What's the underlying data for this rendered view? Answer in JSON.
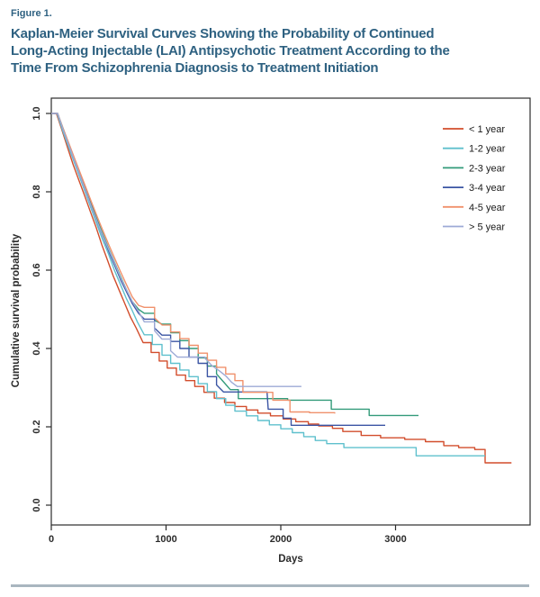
{
  "header": {
    "figure_label": "Figure 1.",
    "title": "Kaplan-Meier Survival Curves Showing the Probability of Continued Long-Acting Injectable (LAI) Antipsychotic Treatment According to the Time From Schizophrenia Diagnosis to Treatment Initiation",
    "title_lines": [
      "Kaplan-Meier Survival Curves Showing the Probability of Continued",
      "Long-Acting Injectable (LAI) Antipsychotic Treatment According to the",
      "Time From Schizophrenia Diagnosis to Treatment Initiation"
    ]
  },
  "chart_data": {
    "type": "line",
    "subtype": "kaplan-meier-step",
    "title": "",
    "xlabel": "Days",
    "ylabel": "Cumulative survival probability",
    "xlim": [
      0,
      4170
    ],
    "ylim": [
      0.0,
      1.0
    ],
    "x_ticks": [
      0,
      1000,
      2000,
      3000
    ],
    "y_ticks": [
      0.0,
      0.2,
      0.4,
      0.6,
      0.8,
      1.0
    ],
    "y_tick_labels": [
      "0.0",
      "0.2",
      "0.4",
      "0.6",
      "0.8",
      "1.0"
    ],
    "grid": false,
    "legend_position": "top-right-inside",
    "series": [
      {
        "name": "< 1 year",
        "color": "#d24d2c",
        "points": [
          [
            0,
            1.0
          ],
          [
            45,
            1.0
          ],
          [
            90,
            0.96
          ],
          [
            140,
            0.915
          ],
          [
            190,
            0.87
          ],
          [
            240,
            0.83
          ],
          [
            290,
            0.79
          ],
          [
            340,
            0.75
          ],
          [
            390,
            0.71
          ],
          [
            440,
            0.665
          ],
          [
            490,
            0.625
          ],
          [
            540,
            0.585
          ],
          [
            590,
            0.55
          ],
          [
            640,
            0.515
          ],
          [
            690,
            0.48
          ],
          [
            740,
            0.452
          ],
          [
            800,
            0.415
          ],
          [
            870,
            0.39
          ],
          [
            940,
            0.368
          ],
          [
            1010,
            0.35
          ],
          [
            1090,
            0.332
          ],
          [
            1170,
            0.318
          ],
          [
            1250,
            0.303
          ],
          [
            1330,
            0.288
          ],
          [
            1420,
            0.273
          ],
          [
            1510,
            0.262
          ],
          [
            1600,
            0.252
          ],
          [
            1700,
            0.243
          ],
          [
            1800,
            0.235
          ],
          [
            1910,
            0.228
          ],
          [
            2020,
            0.22
          ],
          [
            2130,
            0.213
          ],
          [
            2240,
            0.207
          ],
          [
            2330,
            0.202
          ],
          [
            2450,
            0.196
          ],
          [
            2540,
            0.188
          ],
          [
            2700,
            0.178
          ],
          [
            2870,
            0.172
          ],
          [
            3080,
            0.168
          ],
          [
            3260,
            0.162
          ],
          [
            3420,
            0.152
          ],
          [
            3550,
            0.147
          ],
          [
            3690,
            0.142
          ],
          [
            3780,
            0.108
          ],
          [
            4010,
            0.108
          ]
        ]
      },
      {
        "name": "1-2 year",
        "color": "#5fc0cd",
        "points": [
          [
            0,
            1.0
          ],
          [
            50,
            1.0
          ],
          [
            100,
            0.955
          ],
          [
            150,
            0.915
          ],
          [
            200,
            0.875
          ],
          [
            250,
            0.835
          ],
          [
            300,
            0.795
          ],
          [
            350,
            0.755
          ],
          [
            400,
            0.715
          ],
          [
            450,
            0.675
          ],
          [
            500,
            0.64
          ],
          [
            550,
            0.6
          ],
          [
            600,
            0.565
          ],
          [
            650,
            0.53
          ],
          [
            700,
            0.5
          ],
          [
            750,
            0.468
          ],
          [
            810,
            0.435
          ],
          [
            880,
            0.41
          ],
          [
            965,
            0.383
          ],
          [
            1040,
            0.362
          ],
          [
            1120,
            0.345
          ],
          [
            1200,
            0.328
          ],
          [
            1280,
            0.31
          ],
          [
            1360,
            0.29
          ],
          [
            1440,
            0.272
          ],
          [
            1520,
            0.255
          ],
          [
            1600,
            0.24
          ],
          [
            1700,
            0.228
          ],
          [
            1800,
            0.216
          ],
          [
            1900,
            0.205
          ],
          [
            2000,
            0.195
          ],
          [
            2100,
            0.185
          ],
          [
            2200,
            0.175
          ],
          [
            2300,
            0.165
          ],
          [
            2400,
            0.157
          ],
          [
            2550,
            0.147
          ],
          [
            3180,
            0.126
          ],
          [
            3780,
            0.126
          ]
        ]
      },
      {
        "name": "2-3 year",
        "color": "#339b7a",
        "points": [
          [
            0,
            1.0
          ],
          [
            55,
            1.0
          ],
          [
            105,
            0.96
          ],
          [
            155,
            0.92
          ],
          [
            205,
            0.88
          ],
          [
            255,
            0.84
          ],
          [
            305,
            0.8
          ],
          [
            355,
            0.762
          ],
          [
            405,
            0.725
          ],
          [
            455,
            0.688
          ],
          [
            505,
            0.652
          ],
          [
            555,
            0.617
          ],
          [
            605,
            0.583
          ],
          [
            655,
            0.55
          ],
          [
            705,
            0.52
          ],
          [
            760,
            0.5
          ],
          [
            810,
            0.49
          ],
          [
            900,
            0.472
          ],
          [
            965,
            0.462
          ],
          [
            1040,
            0.44
          ],
          [
            1120,
            0.42
          ],
          [
            1200,
            0.4
          ],
          [
            1280,
            0.376
          ],
          [
            1360,
            0.355
          ],
          [
            1440,
            0.335
          ],
          [
            1500,
            0.315
          ],
          [
            1560,
            0.295
          ],
          [
            1630,
            0.272
          ],
          [
            2060,
            0.268
          ],
          [
            2440,
            0.245
          ],
          [
            2770,
            0.229
          ],
          [
            3200,
            0.229
          ]
        ]
      },
      {
        "name": "3-4 year",
        "color": "#3b55a4",
        "points": [
          [
            0,
            1.0
          ],
          [
            55,
            1.0
          ],
          [
            105,
            0.958
          ],
          [
            155,
            0.918
          ],
          [
            205,
            0.878
          ],
          [
            255,
            0.838
          ],
          [
            305,
            0.798
          ],
          [
            355,
            0.758
          ],
          [
            405,
            0.72
          ],
          [
            455,
            0.682
          ],
          [
            505,
            0.645
          ],
          [
            555,
            0.61
          ],
          [
            605,
            0.575
          ],
          [
            655,
            0.545
          ],
          [
            705,
            0.515
          ],
          [
            760,
            0.49
          ],
          [
            810,
            0.475
          ],
          [
            900,
            0.452
          ],
          [
            965,
            0.434
          ],
          [
            1040,
            0.418
          ],
          [
            1120,
            0.4
          ],
          [
            1200,
            0.378
          ],
          [
            1280,
            0.362
          ],
          [
            1360,
            0.328
          ],
          [
            1440,
            0.307
          ],
          [
            1500,
            0.289
          ],
          [
            1880,
            0.289
          ],
          [
            1890,
            0.245
          ],
          [
            2020,
            0.222
          ],
          [
            2090,
            0.204
          ],
          [
            2910,
            0.204
          ]
        ]
      },
      {
        "name": "4-5 year",
        "color": "#f0916c",
        "points": [
          [
            0,
            1.0
          ],
          [
            55,
            1.0
          ],
          [
            105,
            0.96
          ],
          [
            155,
            0.922
          ],
          [
            205,
            0.884
          ],
          [
            255,
            0.846
          ],
          [
            305,
            0.808
          ],
          [
            355,
            0.77
          ],
          [
            405,
            0.733
          ],
          [
            455,
            0.697
          ],
          [
            505,
            0.662
          ],
          [
            555,
            0.628
          ],
          [
            605,
            0.595
          ],
          [
            655,
            0.563
          ],
          [
            705,
            0.532
          ],
          [
            760,
            0.51
          ],
          [
            810,
            0.505
          ],
          [
            900,
            0.478
          ],
          [
            965,
            0.46
          ],
          [
            1040,
            0.442
          ],
          [
            1120,
            0.425
          ],
          [
            1200,
            0.408
          ],
          [
            1280,
            0.388
          ],
          [
            1360,
            0.37
          ],
          [
            1440,
            0.352
          ],
          [
            1520,
            0.335
          ],
          [
            1600,
            0.318
          ],
          [
            1670,
            0.288
          ],
          [
            1930,
            0.268
          ],
          [
            2080,
            0.238
          ],
          [
            2250,
            0.236
          ],
          [
            2470,
            0.234
          ]
        ]
      },
      {
        "name": "> 5 year",
        "color": "#9daad6",
        "points": [
          [
            0,
            1.0
          ],
          [
            55,
            1.0
          ],
          [
            105,
            0.957
          ],
          [
            155,
            0.917
          ],
          [
            205,
            0.877
          ],
          [
            255,
            0.837
          ],
          [
            305,
            0.797
          ],
          [
            355,
            0.757
          ],
          [
            405,
            0.72
          ],
          [
            455,
            0.684
          ],
          [
            505,
            0.65
          ],
          [
            555,
            0.615
          ],
          [
            605,
            0.58
          ],
          [
            655,
            0.55
          ],
          [
            705,
            0.52
          ],
          [
            760,
            0.495
          ],
          [
            810,
            0.468
          ],
          [
            900,
            0.445
          ],
          [
            965,
            0.424
          ],
          [
            1040,
            0.394
          ],
          [
            1100,
            0.378
          ],
          [
            1340,
            0.375
          ],
          [
            1400,
            0.356
          ],
          [
            1460,
            0.344
          ],
          [
            1520,
            0.33
          ],
          [
            1570,
            0.314
          ],
          [
            1620,
            0.303
          ],
          [
            2180,
            0.303
          ]
        ]
      }
    ]
  },
  "colors": {
    "title_text": "#2e6181",
    "axis_line": "#2b2b2b",
    "tick_text": "#2b2b2b",
    "legend_text": "#1a1a1a",
    "divider": "#a9b6bf",
    "background": "#ffffff"
  }
}
